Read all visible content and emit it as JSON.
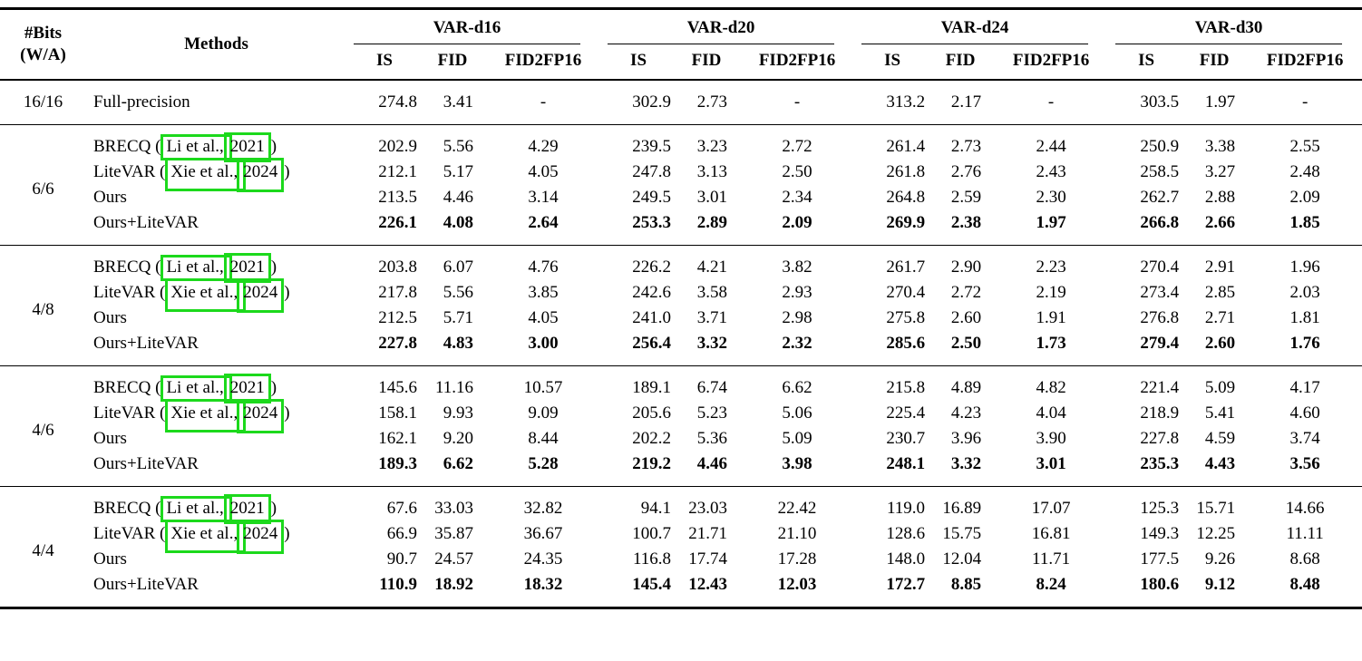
{
  "colors": {
    "citation_box_green": "#1cd91c"
  },
  "header": {
    "bits_line1": "#Bits",
    "bits_line2": "(W/A)",
    "methods": "Methods",
    "groups": [
      "VAR-d16",
      "VAR-d20",
      "VAR-d24",
      "VAR-d30"
    ],
    "metrics": [
      "IS",
      "FID",
      "FID2FP16"
    ]
  },
  "sections": [
    {
      "bits": "16/16",
      "rows": [
        {
          "method": [
            {
              "t": "Full-precision"
            }
          ],
          "bold": false,
          "values": [
            "274.8",
            "3.41",
            "-",
            "302.9",
            "2.73",
            "-",
            "313.2",
            "2.17",
            "-",
            "303.5",
            "1.97",
            "-"
          ]
        }
      ]
    },
    {
      "bits": "6/6",
      "rows": [
        {
          "method": [
            {
              "t": "BRECQ ("
            },
            {
              "t": "Li et al.,",
              "box": "name-up"
            },
            {
              "t": "2021",
              "box": "year-up"
            },
            {
              "t": ")"
            }
          ],
          "bold": false,
          "values": [
            "202.9",
            "5.56",
            "4.29",
            "239.5",
            "3.23",
            "2.72",
            "261.4",
            "2.73",
            "2.44",
            "250.9",
            "3.38",
            "2.55"
          ]
        },
        {
          "method": [
            {
              "t": "LiteVAR ("
            },
            {
              "t": "Xie et al.,",
              "box": "name-down"
            },
            {
              "t": "2024",
              "box": "year-down"
            },
            {
              "t": ")"
            }
          ],
          "bold": false,
          "values": [
            "212.1",
            "5.17",
            "4.05",
            "247.8",
            "3.13",
            "2.50",
            "261.8",
            "2.76",
            "2.43",
            "258.5",
            "3.27",
            "2.48"
          ]
        },
        {
          "method": [
            {
              "t": "Ours"
            }
          ],
          "bold": false,
          "values": [
            "213.5",
            "4.46",
            "3.14",
            "249.5",
            "3.01",
            "2.34",
            "264.8",
            "2.59",
            "2.30",
            "262.7",
            "2.88",
            "2.09"
          ]
        },
        {
          "method": [
            {
              "t": "Ours+LiteVAR"
            }
          ],
          "bold": true,
          "values": [
            "226.1",
            "4.08",
            "2.64",
            "253.3",
            "2.89",
            "2.09",
            "269.9",
            "2.38",
            "1.97",
            "266.8",
            "2.66",
            "1.85"
          ]
        }
      ]
    },
    {
      "bits": "4/8",
      "rows": [
        {
          "method": [
            {
              "t": "BRECQ ("
            },
            {
              "t": "Li et al.,",
              "box": "name-up"
            },
            {
              "t": "2021",
              "box": "year-up"
            },
            {
              "t": ")"
            }
          ],
          "bold": false,
          "values": [
            "203.8",
            "6.07",
            "4.76",
            "226.2",
            "4.21",
            "3.82",
            "261.7",
            "2.90",
            "2.23",
            "270.4",
            "2.91",
            "1.96"
          ]
        },
        {
          "method": [
            {
              "t": "LiteVAR ("
            },
            {
              "t": "Xie et al.,",
              "box": "name-down"
            },
            {
              "t": "2024",
              "box": "year-down"
            },
            {
              "t": ")"
            }
          ],
          "bold": false,
          "values": [
            "217.8",
            "5.56",
            "3.85",
            "242.6",
            "3.58",
            "2.93",
            "270.4",
            "2.72",
            "2.19",
            "273.4",
            "2.85",
            "2.03"
          ]
        },
        {
          "method": [
            {
              "t": "Ours"
            }
          ],
          "bold": false,
          "values": [
            "212.5",
            "5.71",
            "4.05",
            "241.0",
            "3.71",
            "2.98",
            "275.8",
            "2.60",
            "1.91",
            "276.8",
            "2.71",
            "1.81"
          ]
        },
        {
          "method": [
            {
              "t": "Ours+LiteVAR"
            }
          ],
          "bold": true,
          "values": [
            "227.8",
            "4.83",
            "3.00",
            "256.4",
            "3.32",
            "2.32",
            "285.6",
            "2.50",
            "1.73",
            "279.4",
            "2.60",
            "1.76"
          ]
        }
      ]
    },
    {
      "bits": "4/6",
      "rows": [
        {
          "method": [
            {
              "t": "BRECQ ("
            },
            {
              "t": "Li et al.,",
              "box": "name-up"
            },
            {
              "t": "2021",
              "box": "year-up"
            },
            {
              "t": ")"
            }
          ],
          "bold": false,
          "values": [
            "145.6",
            "11.16",
            "10.57",
            "189.1",
            "6.74",
            "6.62",
            "215.8",
            "4.89",
            "4.82",
            "221.4",
            "5.09",
            "4.17"
          ]
        },
        {
          "method": [
            {
              "t": "LiteVAR ("
            },
            {
              "t": "Xie et al.,",
              "box": "name-down"
            },
            {
              "t": "2024",
              "box": "year-down"
            },
            {
              "t": ")"
            }
          ],
          "bold": false,
          "values": [
            "158.1",
            "9.93",
            "9.09",
            "205.6",
            "5.23",
            "5.06",
            "225.4",
            "4.23",
            "4.04",
            "218.9",
            "5.41",
            "4.60"
          ]
        },
        {
          "method": [
            {
              "t": "Ours"
            }
          ],
          "bold": false,
          "values": [
            "162.1",
            "9.20",
            "8.44",
            "202.2",
            "5.36",
            "5.09",
            "230.7",
            "3.96",
            "3.90",
            "227.8",
            "4.59",
            "3.74"
          ]
        },
        {
          "method": [
            {
              "t": "Ours+LiteVAR"
            }
          ],
          "bold": true,
          "values": [
            "189.3",
            "6.62",
            "5.28",
            "219.2",
            "4.46",
            "3.98",
            "248.1",
            "3.32",
            "3.01",
            "235.3",
            "4.43",
            "3.56"
          ]
        }
      ]
    },
    {
      "bits": "4/4",
      "rows": [
        {
          "method": [
            {
              "t": "BRECQ ("
            },
            {
              "t": "Li et al.,",
              "box": "name-up"
            },
            {
              "t": "2021",
              "box": "year-up"
            },
            {
              "t": ")"
            }
          ],
          "bold": false,
          "values": [
            "67.6",
            "33.03",
            "32.82",
            "94.1",
            "23.03",
            "22.42",
            "119.0",
            "16.89",
            "17.07",
            "125.3",
            "15.71",
            "14.66"
          ]
        },
        {
          "method": [
            {
              "t": "LiteVAR ("
            },
            {
              "t": "Xie et al.,",
              "box": "name-down"
            },
            {
              "t": "2024",
              "box": "year-down"
            },
            {
              "t": ")"
            }
          ],
          "bold": false,
          "values": [
            "66.9",
            "35.87",
            "36.67",
            "100.7",
            "21.71",
            "21.10",
            "128.6",
            "15.75",
            "16.81",
            "149.3",
            "12.25",
            "11.11"
          ]
        },
        {
          "method": [
            {
              "t": "Ours"
            }
          ],
          "bold": false,
          "values": [
            "90.7",
            "24.57",
            "24.35",
            "116.8",
            "17.74",
            "17.28",
            "148.0",
            "12.04",
            "11.71",
            "177.5",
            "9.26",
            "8.68"
          ]
        },
        {
          "method": [
            {
              "t": "Ours+LiteVAR"
            }
          ],
          "bold": true,
          "values": [
            "110.9",
            "18.92",
            "18.32",
            "145.4",
            "12.43",
            "12.03",
            "172.7",
            "8.85",
            "8.24",
            "180.6",
            "9.12",
            "8.48"
          ]
        }
      ]
    }
  ]
}
